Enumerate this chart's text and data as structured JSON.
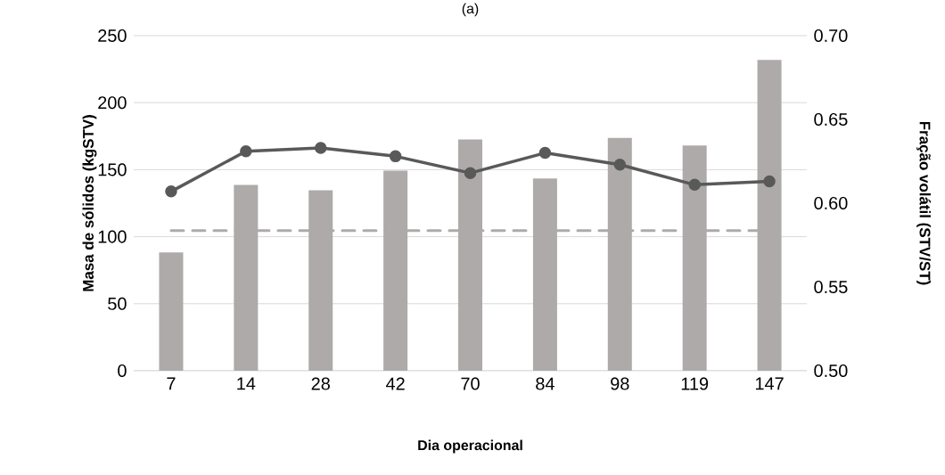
{
  "chart_data": {
    "type": "bar",
    "title": "(a)",
    "xlabel": "Dia operacional",
    "ylabel": "Masa de sólidos (kgSTV)",
    "y2label": "Fração volátil (STV/ST)",
    "categories": [
      "7",
      "14",
      "28",
      "42",
      "70",
      "84",
      "98",
      "119",
      "147"
    ],
    "series": [
      {
        "values": [
          88.3,
          138.6,
          134.6,
          149.3,
          172.6,
          143.5,
          173.7,
          168.1,
          231.8
        ],
        "color": "#aeaaaa"
      },
      {
        "type": "line",
        "axis": "y2",
        "values": [
          0.607,
          0.631,
          0.633,
          0.628,
          0.618,
          0.63,
          0.623,
          0.611,
          0.613
        ],
        "color": "#595959"
      }
    ],
    "ylim": [
      0,
      250
    ],
    "yticks": [
      0,
      50,
      100,
      150,
      200,
      250
    ],
    "y2lim": [
      0.5,
      0.7
    ],
    "y2ticks": [
      {
        "value": 0.5,
        "label": "0.50"
      },
      {
        "value": 0.55,
        "label": "0.55"
      },
      {
        "value": 0.6,
        "label": "0.60"
      },
      {
        "value": 0.65,
        "label": "0.65"
      },
      {
        "value": 0.7,
        "label": "0.70"
      }
    ],
    "grid": "y",
    "marker": "circle",
    "ref_lines": [
      {
        "axis": "y",
        "value": 104.5,
        "color": "#aeaaaa",
        "line_style": "dashed"
      }
    ]
  }
}
